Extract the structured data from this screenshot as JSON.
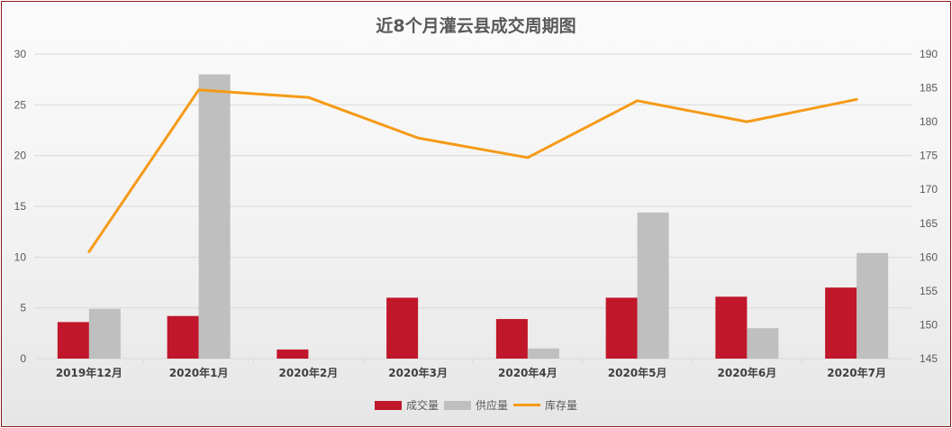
{
  "title": "近8个月灌云县成交周期图",
  "legend": [
    {
      "label": "成交量",
      "type": "bar",
      "color": "#c0172a"
    },
    {
      "label": "供应量",
      "type": "bar",
      "color": "#bfbfbf"
    },
    {
      "label": "库存量",
      "type": "line",
      "color": "#f59a17"
    }
  ],
  "chart_data": {
    "type": "bar",
    "title": "近8个月灌云县成交周期图",
    "categories": [
      "2019年12月",
      "2020年1月",
      "2020年2月",
      "2020年3月",
      "2020年4月",
      "2020年5月",
      "2020年6月",
      "2020年7月"
    ],
    "series": [
      {
        "name": "成交量",
        "type": "bar",
        "axis": "left",
        "color": "#c0172a",
        "values": [
          3.6,
          4.2,
          0.9,
          6.0,
          3.9,
          6.0,
          6.1,
          7.0
        ]
      },
      {
        "name": "供应量",
        "type": "bar",
        "axis": "left",
        "color": "#bfbfbf",
        "values": [
          4.9,
          28.0,
          0,
          0,
          1.0,
          14.4,
          3.0,
          10.4
        ]
      },
      {
        "name": "库存量",
        "type": "line",
        "axis": "right",
        "color": "#f59a17",
        "values": [
          160.8,
          184.7,
          183.6,
          177.6,
          174.7,
          183.1,
          180.0,
          183.3
        ]
      }
    ],
    "y_left": {
      "min": 0,
      "max": 30,
      "step": 5,
      "ticks": [
        "0",
        "5",
        "10",
        "15",
        "20",
        "25",
        "30"
      ]
    },
    "y_right": {
      "min": 145,
      "max": 190,
      "step": 5,
      "ticks": [
        "145",
        "150",
        "155",
        "160",
        "165",
        "170",
        "175",
        "180",
        "185",
        "190"
      ]
    },
    "xlabel": "",
    "ylabel": "",
    "grid": true,
    "legend_position": "bottom"
  }
}
